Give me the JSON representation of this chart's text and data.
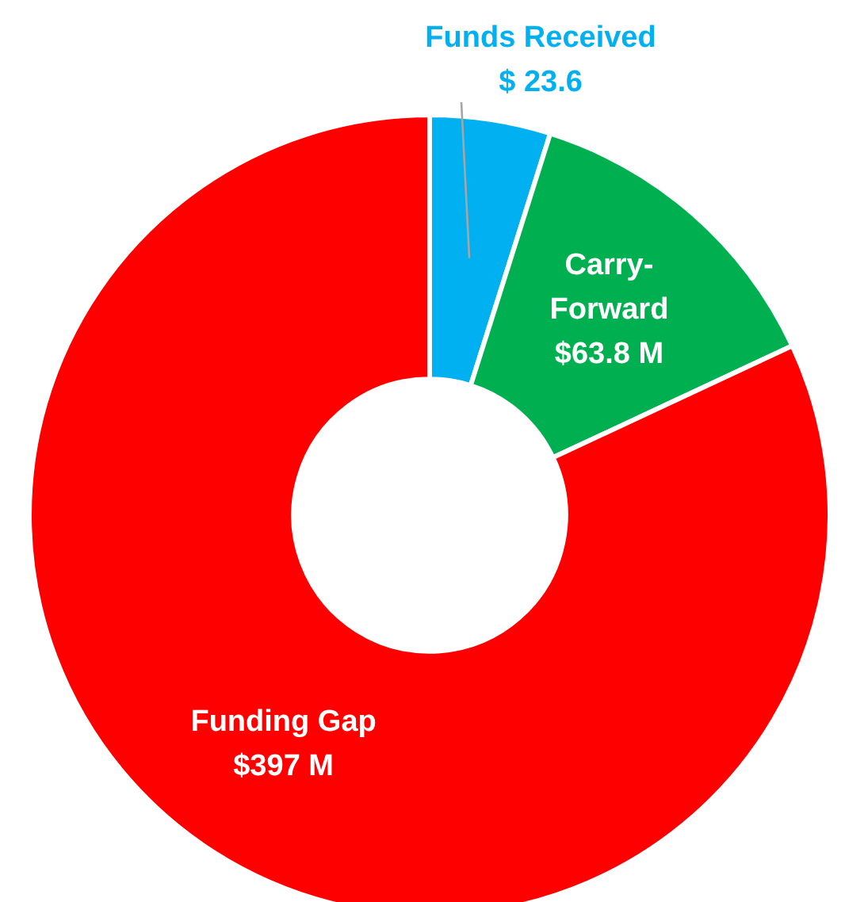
{
  "chart_data": {
    "type": "donut",
    "categories": [
      "Funds Received",
      "Carry-Forward",
      "Funding Gap"
    ],
    "values": [
      23.6,
      63.8,
      397
    ],
    "colors": [
      "#00b0f0",
      "#00b050",
      "#ff0000"
    ],
    "value_labels": [
      "$ 23.6",
      "$63.8 M",
      "$397 M"
    ],
    "legend": false
  }
}
